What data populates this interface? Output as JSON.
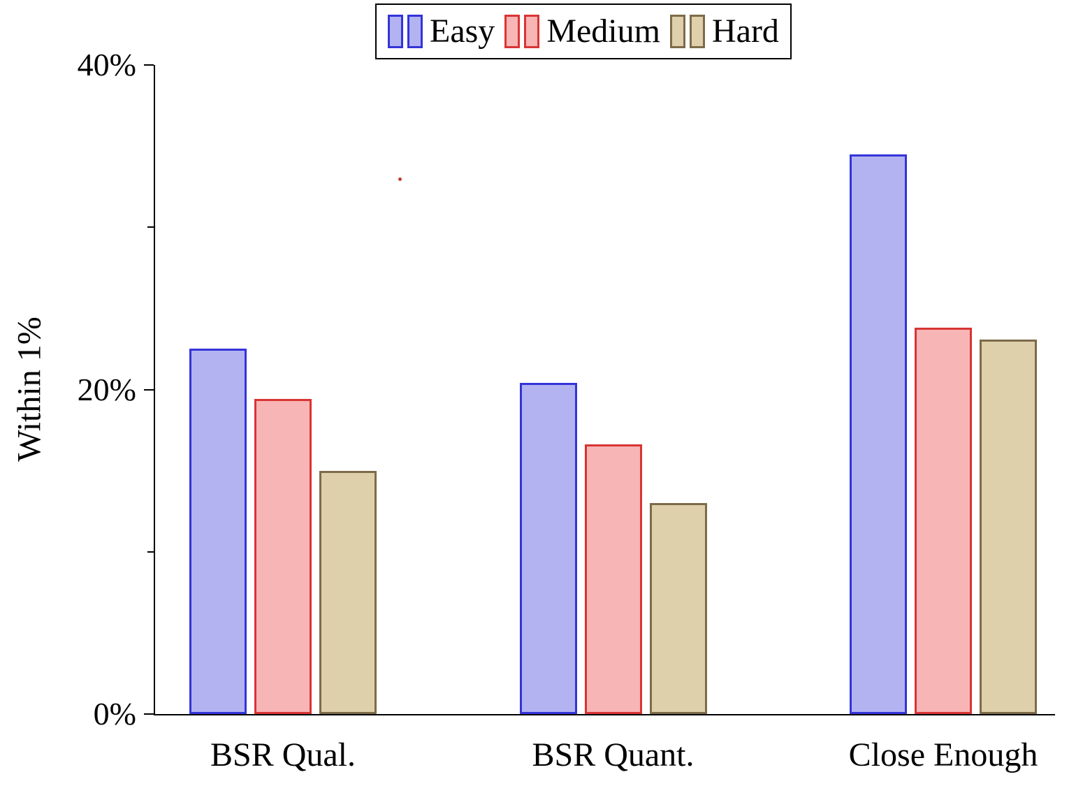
{
  "chart_data": {
    "type": "bar",
    "title": "",
    "xlabel": "",
    "ylabel": "Within 1%",
    "ylim": [
      0,
      40
    ],
    "ytick_labels": [
      "0%",
      "20%",
      "40%"
    ],
    "yticks_major": [
      0,
      20,
      40
    ],
    "yticks_minor": [
      10,
      30
    ],
    "grid": false,
    "legend_position": "top-center",
    "categories": [
      "BSR Qual.",
      "BSR Quant.",
      "Close Enough"
    ],
    "series": [
      {
        "name": "Easy",
        "fill": "#b3b3f2",
        "border": "#3434d9",
        "values": [
          22.5,
          20.4,
          34.5
        ]
      },
      {
        "name": "Medium",
        "fill": "#f7b5b5",
        "border": "#d93434",
        "values": [
          19.4,
          16.6,
          23.8
        ]
      },
      {
        "name": "Hard",
        "fill": "#ded0aa",
        "border": "#7d6b49",
        "values": [
          15.0,
          13.0,
          23.1
        ]
      }
    ]
  }
}
